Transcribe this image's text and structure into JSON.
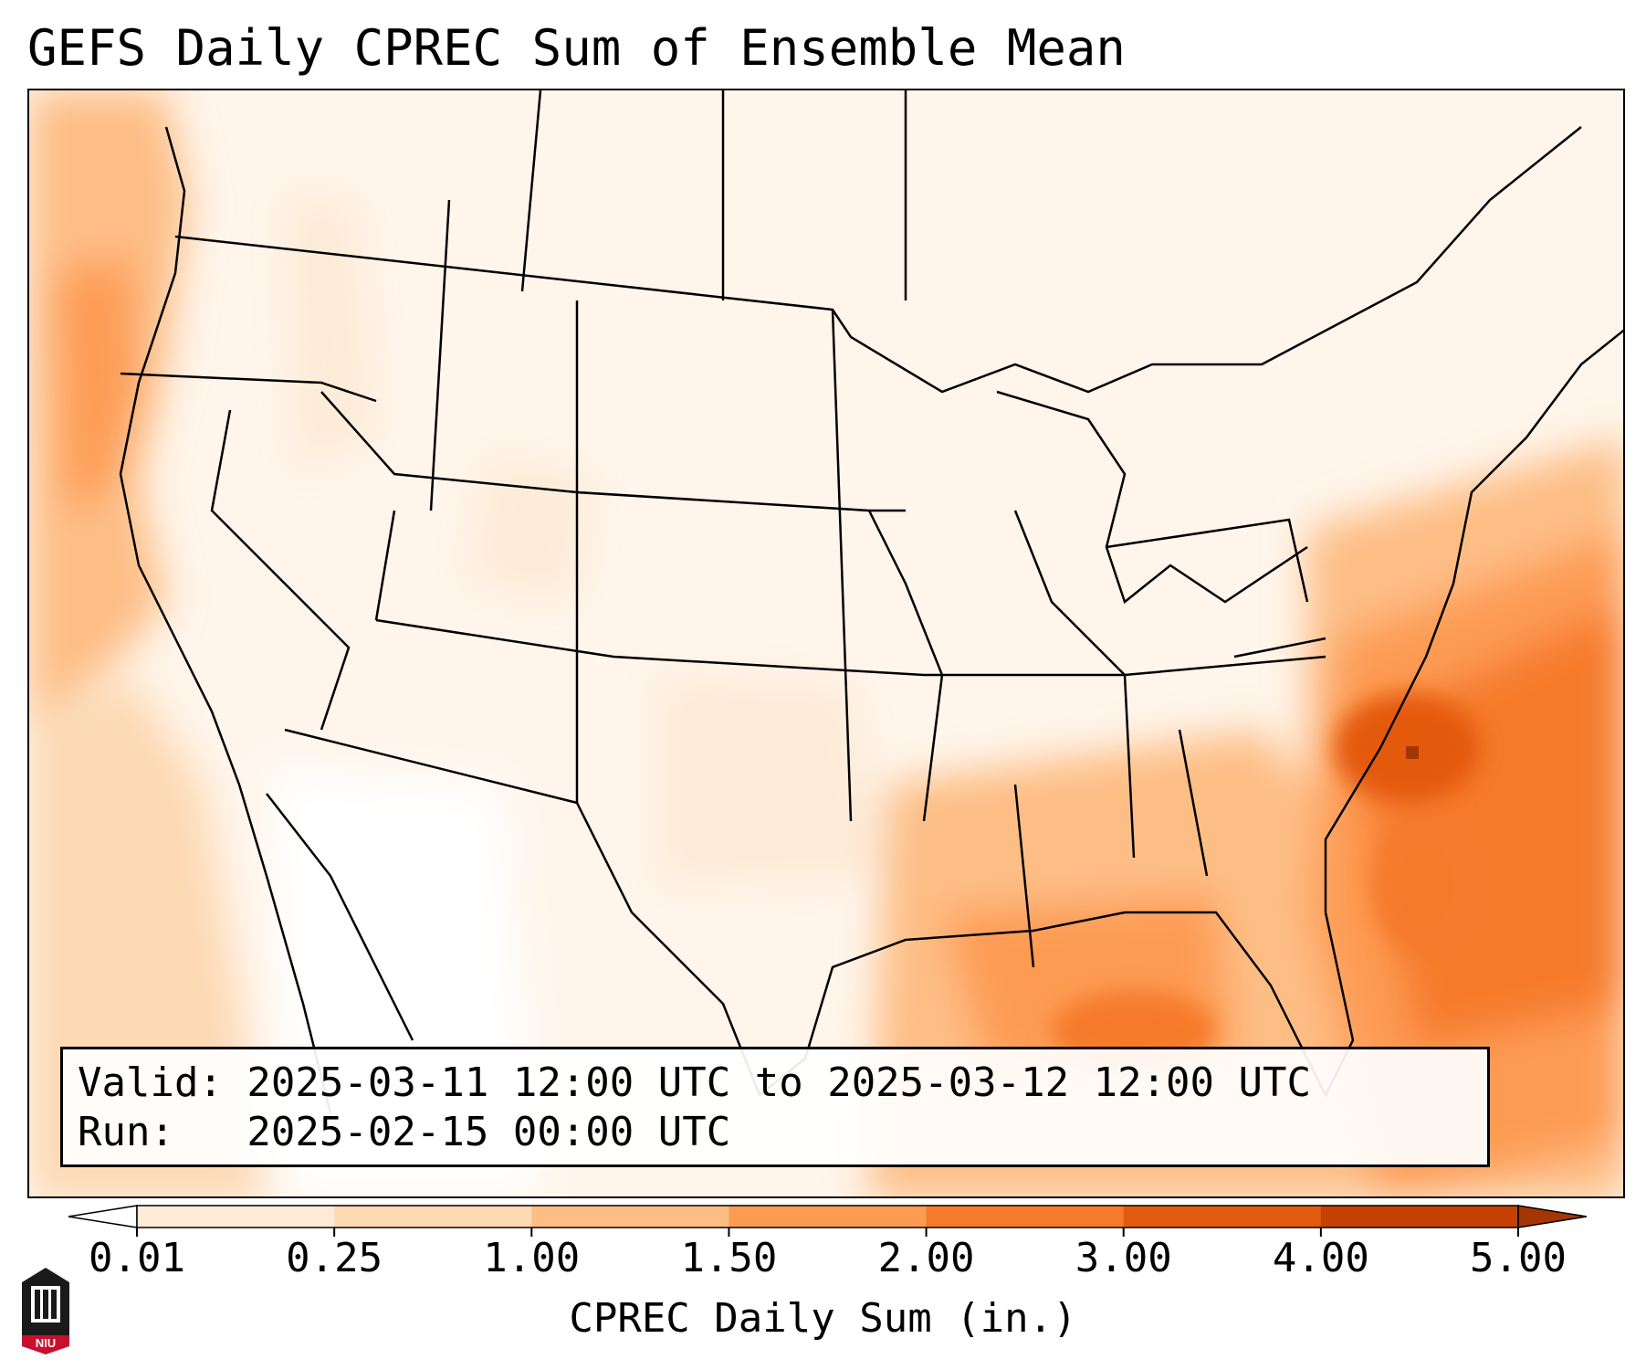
{
  "title": "GEFS Daily CPREC Sum of Ensemble Mean",
  "info": {
    "valid_line": "Valid: 2025-03-11 12:00 UTC to 2025-03-12 12:00 UTC",
    "run_line": "Run:   2025-02-15 00:00 UTC"
  },
  "colorbar": {
    "label": "CPREC Daily Sum (in.)",
    "ticks": [
      "0.01",
      "0.25",
      "1.00",
      "1.50",
      "2.00",
      "3.00",
      "4.00",
      "5.00"
    ],
    "colors": [
      "#fdebd7",
      "#fdd9b4",
      "#fdbe85",
      "#fd9b53",
      "#f67a29",
      "#e45a0f",
      "#c54102"
    ],
    "under_color": "#ffffff",
    "over_color": "#a53603"
  },
  "logo": {
    "text": "NIU",
    "icon": "niu-university-logo-icon"
  }
}
